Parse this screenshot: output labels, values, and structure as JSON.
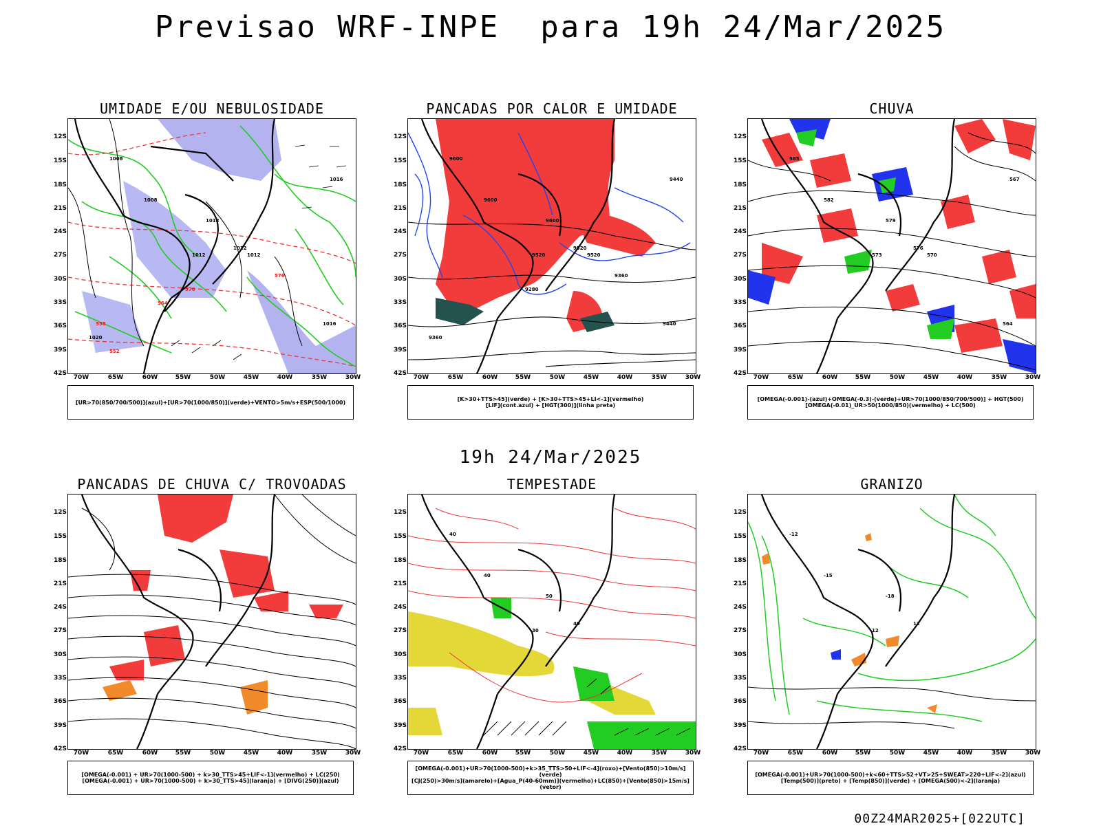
{
  "title": "Previsao WRF-INPE  para 19h 24/Mar/2025",
  "mid_title": "19h 24/Mar/2025",
  "footer": "00Z24MAR2025+[022UTC]",
  "axes": {
    "lat_labels": [
      "12S",
      "15S",
      "18S",
      "21S",
      "24S",
      "27S",
      "30S",
      "33S",
      "36S",
      "39S",
      "42S"
    ],
    "lon_labels": [
      "70W",
      "65W",
      "60W",
      "55W",
      "50W",
      "45W",
      "40W",
      "35W",
      "30W"
    ]
  },
  "panels": [
    {
      "title": "UMIDADE E/OU NEBULOSIDADE",
      "legend": [
        "[UR>70(850/700/500)](azul)+[UR>70(1000/850)](verde)+VENTO>5m/s+ESP(500/1000)"
      ],
      "contour_labels": [
        "1008",
        "1008",
        "1012",
        "1012",
        "1012",
        "1012",
        "1016",
        "1016",
        "1020",
        "576",
        "570",
        "564",
        "558",
        "552"
      ]
    },
    {
      "title": "PANCADAS POR CALOR E UMIDADE",
      "legend": [
        "[K>30+TTS>45](verde) + [K>30+TTS>45+LI<-1](vermelho)",
        "[LIF](cont.azul) + [HGT(300)](linha preta)"
      ],
      "contour_labels": [
        "9600",
        "9600",
        "9600",
        "9520",
        "9520",
        "9520",
        "9440",
        "9440",
        "9360",
        "9360",
        "9280"
      ]
    },
    {
      "title": "CHUVA",
      "legend": [
        "[OMEGA(-0.001)-(azul)+OMEGA(-0.3)-(verde)+UR>70(1000/850/700/500)] + HGT(500)",
        "[OMEGA(-0.01)_UR>50(1000/850)(vermelho) + LC(500)"
      ],
      "contour_labels": [
        "585",
        "582",
        "579",
        "576",
        "573",
        "570",
        "567",
        "564"
      ]
    },
    {
      "title": "PANCADAS DE CHUVA C/ TROVOADAS",
      "legend": [
        "[OMEGA(-0.001) + UR>70(1000-500) + k>30_TTS>45+LIF<-1](vermelho) + LC(250)",
        "[OMEGA(-0.001) + UR>70(1000-500) + k>30_TTS>45](laranja) + [DIVG(250)](azul)"
      ],
      "contour_labels": []
    },
    {
      "title": "TEMPESTADE",
      "legend": [
        "[OMEGA(-0.001)+UR>70(1000-500)+k>35_TTS>50+LIF<-4](roxo)+[Vento(850)>10m/s](verde)",
        "[CJ(250)>30m/s](amarelo)+[Agua_P(40-60mm)](vermelho)+LC(850)+[Vento(850)>15m/s](vetor)"
      ],
      "contour_labels": [
        "40",
        "40",
        "50",
        "40",
        "30"
      ]
    },
    {
      "title": "GRANIZO",
      "legend": [
        "[OMEGA(-0.001)+UR>70(1000-500)+k<60+TTS>52+VT>25+SWEAT>220+LIF<-2](azul)",
        "[Temp(500)](preto) + [Temp(850)](verde) + [OMEGA(500)<-2](laranja)"
      ],
      "contour_labels": [
        "-12",
        "-15",
        "-18",
        "12",
        "12"
      ]
    }
  ]
}
